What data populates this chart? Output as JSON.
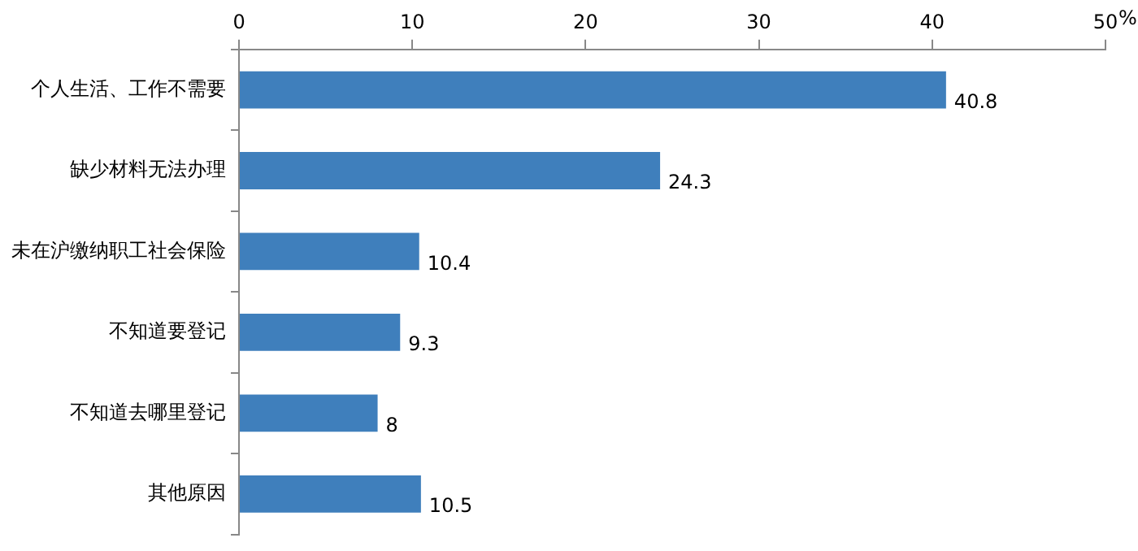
{
  "chart_data": {
    "type": "bar",
    "orientation": "horizontal",
    "xlabel": "%",
    "categories": [
      "个人生活、工作不需要",
      "缺少材料无法办理",
      "未在沪缴纳职工社会保险",
      "不知道要登记",
      "不知道去哪里登记",
      "其他原因"
    ],
    "values": [
      40.8,
      24.3,
      10.4,
      9.3,
      8,
      10.5
    ],
    "color": "#3f7fbc",
    "xlim": [
      0,
      50
    ],
    "xticks": [
      0,
      10,
      20,
      30,
      40,
      50
    ],
    "grid": false,
    "legend": false,
    "data_labels": true
  }
}
